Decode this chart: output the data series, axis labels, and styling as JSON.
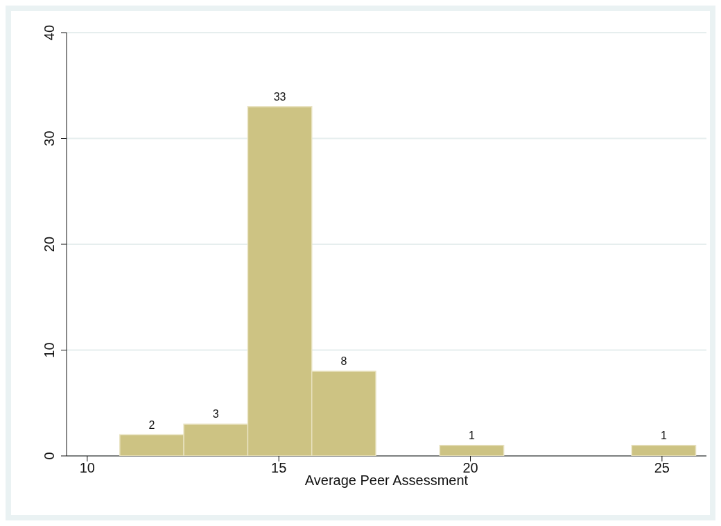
{
  "chart_data": {
    "type": "histogram",
    "xlabel": "Average Peer Assessment",
    "bins": [
      10.85,
      12.52,
      14.19,
      15.86,
      17.53,
      19.2,
      20.87,
      22.54,
      24.21,
      25.88
    ],
    "values": [
      2,
      3,
      33,
      8,
      0,
      1,
      0,
      0,
      1
    ],
    "value_labels": [
      "2",
      "3",
      "33",
      "8",
      null,
      "1",
      null,
      null,
      "1"
    ],
    "color": "#cdc383",
    "xlim": [
      9.46,
      26.16
    ],
    "xticks": [
      10,
      15,
      20,
      25
    ],
    "ylim": [
      0,
      40
    ],
    "yticks": [
      0,
      10,
      20,
      30,
      40
    ],
    "grid": "y"
  }
}
